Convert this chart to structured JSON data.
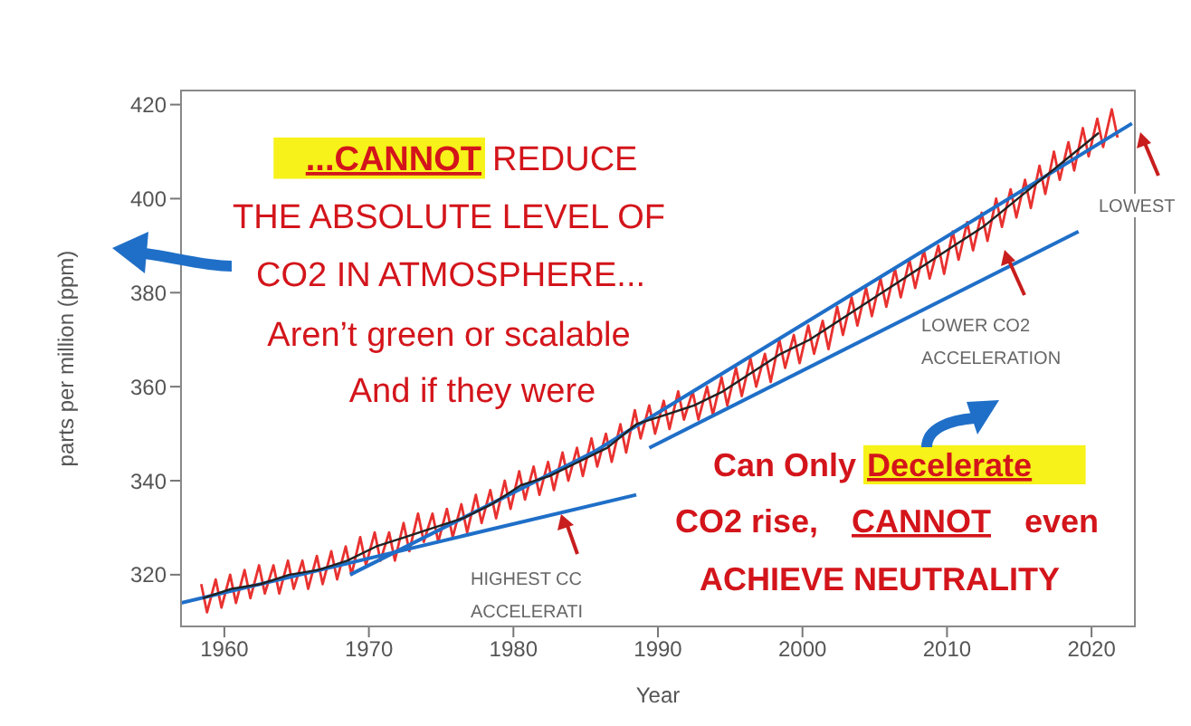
{
  "chart_data": {
    "type": "line",
    "xlabel": "Year",
    "ylabel": "parts per million (ppm)",
    "xlim": [
      1957,
      2023
    ],
    "ylim": [
      309,
      423
    ],
    "xticks": [
      1960,
      1970,
      1980,
      1990,
      2000,
      2010,
      2020
    ],
    "yticks": [
      320,
      340,
      360,
      380,
      400,
      420
    ],
    "marker": "none",
    "line_style": "solid",
    "series": [
      {
        "color": "#e8312f",
        "x": [
          1958.4,
          1958.8,
          1959.4,
          1959.8,
          1960.4,
          1960.8,
          1961.4,
          1961.8,
          1962.4,
          1962.8,
          1963.4,
          1963.8,
          1964.4,
          1964.8,
          1965.4,
          1965.8,
          1966.4,
          1966.8,
          1967.4,
          1967.8,
          1968.4,
          1968.8,
          1969.4,
          1969.8,
          1970.4,
          1970.8,
          1971.4,
          1971.8,
          1972.4,
          1972.8,
          1973.4,
          1973.8,
          1974.4,
          1974.8,
          1975.4,
          1975.8,
          1976.4,
          1976.8,
          1977.4,
          1977.8,
          1978.4,
          1978.8,
          1979.4,
          1979.8,
          1980.4,
          1980.8,
          1981.4,
          1981.8,
          1982.4,
          1982.8,
          1983.4,
          1983.8,
          1984.4,
          1984.8,
          1985.4,
          1985.8,
          1986.4,
          1986.8,
          1987.4,
          1987.8,
          1988.4,
          1988.8,
          1989.4,
          1989.8,
          1990.4,
          1990.8,
          1991.4,
          1991.8,
          1992.4,
          1992.8,
          1993.4,
          1993.8,
          1994.4,
          1994.8,
          1995.4,
          1995.8,
          1996.4,
          1996.8,
          1997.4,
          1997.8,
          1998.4,
          1998.8,
          1999.4,
          1999.8,
          2000.4,
          2000.8,
          2001.4,
          2001.8,
          2002.4,
          2002.8,
          2003.4,
          2003.8,
          2004.4,
          2004.8,
          2005.4,
          2005.8,
          2006.4,
          2006.8,
          2007.4,
          2007.8,
          2008.4,
          2008.8,
          2009.4,
          2009.8,
          2010.4,
          2010.8,
          2011.4,
          2011.8,
          2012.4,
          2012.8,
          2013.4,
          2013.8,
          2014.4,
          2014.8,
          2015.4,
          2015.8,
          2016.4,
          2016.8,
          2017.4,
          2017.8,
          2018.4,
          2018.8,
          2019.4,
          2019.8,
          2020.4,
          2020.8,
          2021.4,
          2021.8
        ],
        "values": [
          318,
          312,
          319,
          313,
          320,
          314,
          321,
          315,
          322,
          316,
          322,
          316,
          323,
          317,
          323,
          317,
          324,
          318,
          325,
          319,
          326,
          320,
          328,
          322,
          329,
          323,
          329,
          323,
          331,
          325,
          333,
          327,
          333,
          327,
          334,
          328,
          335,
          329,
          337,
          331,
          338,
          332,
          340,
          334,
          342,
          336,
          343,
          337,
          344,
          338,
          346,
          340,
          347,
          341,
          349,
          343,
          350,
          344,
          352,
          346,
          355,
          349,
          356,
          350,
          357,
          351,
          359,
          353,
          359,
          353,
          360,
          354,
          362,
          356,
          364,
          358,
          366,
          360,
          367,
          361,
          370,
          364,
          371,
          365,
          373,
          367,
          374,
          368,
          377,
          371,
          379,
          373,
          381,
          375,
          383,
          377,
          385,
          379,
          387,
          381,
          389,
          383,
          390,
          384,
          393,
          387,
          395,
          389,
          397,
          391,
          400,
          394,
          402,
          396,
          404,
          398,
          407,
          401,
          410,
          404,
          412,
          406,
          415,
          409,
          417,
          411,
          419,
          413
        ]
      },
      {
        "color": "#1f6fc8",
        "x": [
          1957,
          1988.5
        ],
        "values": [
          314,
          337
        ]
      },
      {
        "color": "#1f6fc8",
        "x": [
          1968.7,
          1985.5,
          2022.8
        ],
        "values": [
          320,
          346,
          416
        ]
      },
      {
        "color": "#1f6fc8",
        "x": [
          1989.4,
          2019.1
        ],
        "values": [
          347,
          393
        ]
      },
      {
        "color": "#222222",
        "x": [
          1958.5,
          1960.5,
          1962.5,
          1964.5,
          1966.5,
          1968.5,
          1970.5,
          1972.5,
          1974.5,
          1976.5,
          1978.5,
          1980.5,
          1982.5,
          1984.5,
          1986.5,
          1988.5,
          1990.5,
          1992.5,
          1994.5,
          1996.5,
          1998.5,
          2000.5,
          2002.5,
          2004.5,
          2006.5,
          2008.5,
          2010.5,
          2012.5,
          2014.5,
          2016.5,
          2018.5,
          2020.5
        ],
        "values": [
          315,
          317,
          318,
          320,
          321,
          323,
          326,
          328,
          330,
          332,
          335,
          339,
          341,
          344,
          347,
          352,
          354,
          356,
          359,
          363,
          367,
          370,
          374,
          378,
          382,
          386,
          390,
          394,
          399,
          404,
          409,
          414
        ]
      }
    ],
    "annotations": [
      "...CANNOT",
      "REDUCE",
      "THE ABSOLUTE LEVEL OF",
      "CO2 IN ATMOSPHERE...",
      "Aren’t green or scalable",
      "And if they were",
      "Can Only",
      "Decelerate",
      "CO2 rise,",
      "CANNOT",
      "even",
      "ACHIEVE NEUTRALITY",
      "HIGHEST CC",
      "ACCELERATI",
      "LOWER CO2",
      "ACCELERATION",
      "LOWEST"
    ]
  }
}
